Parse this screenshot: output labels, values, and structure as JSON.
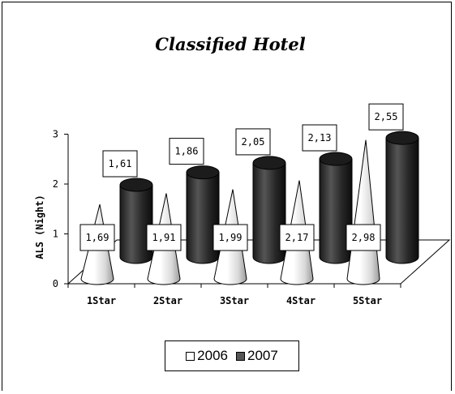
{
  "chart_data": {
    "type": "bar",
    "title": "Classified Hotel",
    "xlabel": "",
    "ylabel": "ALS (Night)",
    "categories": [
      "1Star",
      "2Star",
      "3Star",
      "4Star",
      "5Star"
    ],
    "ylim": [
      0,
      3
    ],
    "yticks": [
      "0",
      "1",
      "2",
      "3"
    ],
    "series": [
      {
        "name": "2006",
        "values": [
          1.69,
          1.91,
          1.99,
          2.17,
          2.98
        ],
        "labels": [
          "1,69",
          "1,91",
          "1,99",
          "2,17",
          "2,98"
        ],
        "color": "#ffffff",
        "shape": "cone"
      },
      {
        "name": "2007",
        "values": [
          1.61,
          1.86,
          2.05,
          2.13,
          2.55
        ],
        "labels": [
          "1,61",
          "1,86",
          "2,05",
          "2,13",
          "2,55"
        ],
        "color": "#333333",
        "shape": "cylinder"
      }
    ],
    "legend_position": "bottom",
    "grid": false
  }
}
